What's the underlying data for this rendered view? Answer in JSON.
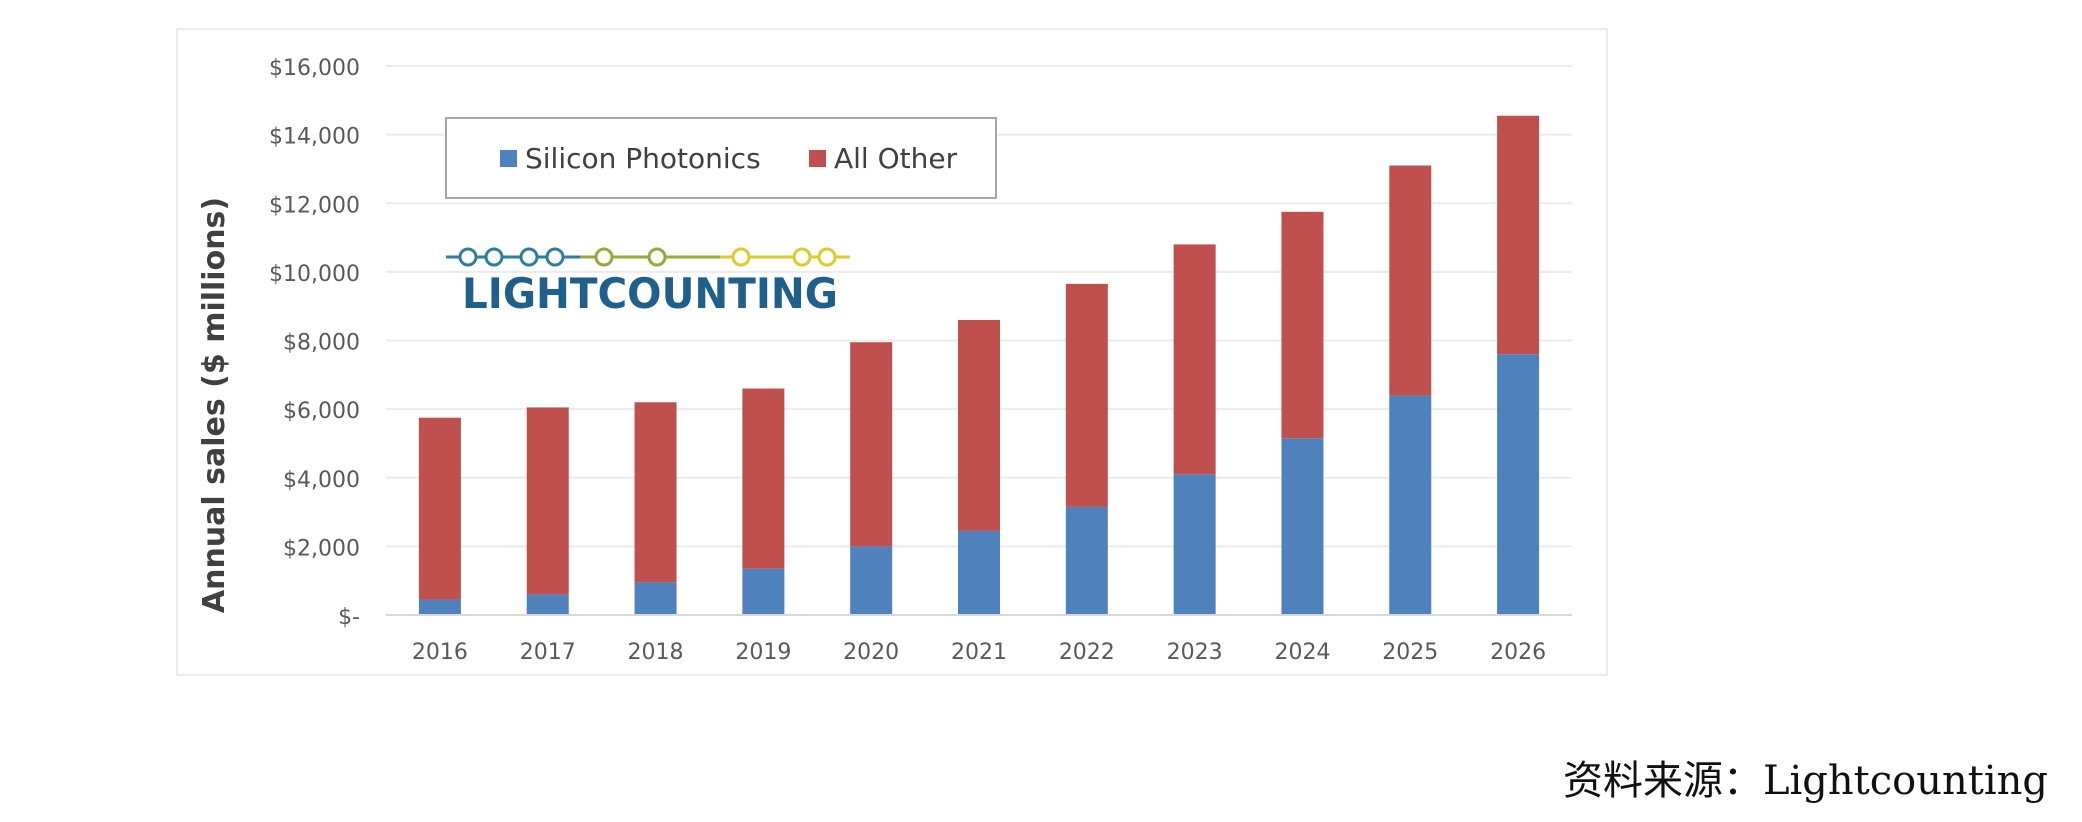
{
  "chart_data": {
    "type": "bar",
    "stacked": true,
    "categories": [
      "2016",
      "2017",
      "2018",
      "2019",
      "2020",
      "2021",
      "2022",
      "2023",
      "2024",
      "2025",
      "2026"
    ],
    "series": [
      {
        "name": "Silicon Photonics",
        "color": "#4f81bd",
        "values": [
          450,
          600,
          950,
          1350,
          2000,
          2450,
          3150,
          4100,
          5150,
          6400,
          7600
        ]
      },
      {
        "name": "All Other",
        "color": "#c0504d",
        "values": [
          5300,
          5450,
          5250,
          5250,
          5950,
          6150,
          6500,
          6700,
          6600,
          6700,
          6950
        ]
      }
    ],
    "ylabel": "Annual sales ($ millions)",
    "ylim": [
      0,
      16000
    ],
    "yticks": [
      0,
      2000,
      4000,
      6000,
      8000,
      10000,
      12000,
      14000,
      16000
    ],
    "ytick_labels": [
      "$-",
      "$2,000",
      "$4,000",
      "$6,000",
      "$8,000",
      "$10,000",
      "$12,000",
      "$14,000",
      "$16,000"
    ],
    "grid": true,
    "legend": "top-left"
  },
  "logo": {
    "text": "LIGHTCOUNTING",
    "color": "#1f5f8b",
    "chain_colors": [
      "#2a7fa0",
      "#9aa83a",
      "#d8cf2a"
    ]
  },
  "source_note": "资料来源：Lightcounting"
}
